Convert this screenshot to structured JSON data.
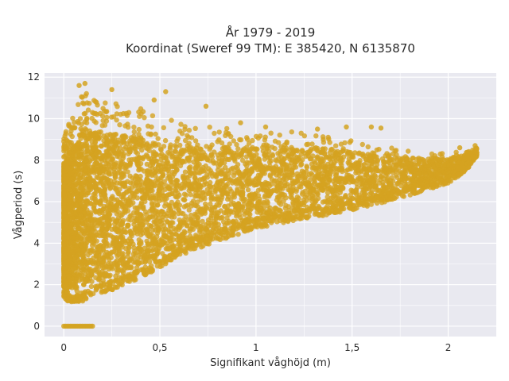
{
  "chart_data": {
    "type": "scatter",
    "title": "År 1979 - 2019",
    "subtitle": "Koordinat (Sweref 99 TM): E 385420, N 6135870",
    "xlabel": "Signifikant våghöjd (m)",
    "ylabel": "Vågperiod (s)",
    "xlim": [
      -0.1,
      2.25
    ],
    "ylim": [
      -0.5,
      12.2
    ],
    "xticks": [
      0,
      0.5,
      1,
      1.5,
      2
    ],
    "xtick_labels": [
      "0",
      "0,5",
      "1",
      "1,5",
      "2"
    ],
    "yticks": [
      0,
      2,
      4,
      6,
      8,
      10,
      12
    ],
    "ytick_labels": [
      "0",
      "2",
      "4",
      "6",
      "8",
      "10",
      "12"
    ],
    "grid": true,
    "colors": {
      "marker": "#d4a320",
      "plot_bg": "#e9e9f0",
      "grid": "#ffffff"
    },
    "envelope": {
      "x": [
        0.0,
        0.05,
        0.1,
        0.2,
        0.3,
        0.4,
        0.5,
        0.6,
        0.8,
        1.0,
        1.2,
        1.4,
        1.6,
        1.8,
        2.0,
        2.1,
        2.15
      ],
      "y_lower": [
        1.3,
        1.1,
        1.2,
        1.6,
        1.9,
        2.3,
        2.8,
        3.4,
        4.1,
        4.7,
        5.1,
        5.4,
        5.8,
        6.3,
        6.9,
        7.5,
        8.2
      ],
      "y_upper": [
        9.2,
        10.3,
        11.3,
        11.0,
        10.8,
        10.6,
        10.0,
        9.9,
        9.6,
        9.4,
        9.4,
        9.2,
        8.8,
        8.5,
        8.3,
        8.5,
        8.6
      ]
    },
    "zero_period_points": {
      "x_range": [
        0.0,
        0.15
      ],
      "y": 0
    },
    "sample_points": [
      {
        "x": 0.08,
        "y": 11.6
      },
      {
        "x": 0.11,
        "y": 11.7
      },
      {
        "x": 0.25,
        "y": 11.4
      },
      {
        "x": 0.53,
        "y": 11.3
      },
      {
        "x": 0.47,
        "y": 10.9
      },
      {
        "x": 0.74,
        "y": 10.6
      },
      {
        "x": 0.92,
        "y": 9.8
      },
      {
        "x": 1.05,
        "y": 9.6
      },
      {
        "x": 1.32,
        "y": 9.5
      },
      {
        "x": 1.47,
        "y": 9.6
      },
      {
        "x": 1.6,
        "y": 9.6
      },
      {
        "x": 1.65,
        "y": 9.55
      },
      {
        "x": 2.06,
        "y": 8.6
      },
      {
        "x": 2.14,
        "y": 8.7
      },
      {
        "x": 1.35,
        "y": 9.0
      }
    ]
  }
}
